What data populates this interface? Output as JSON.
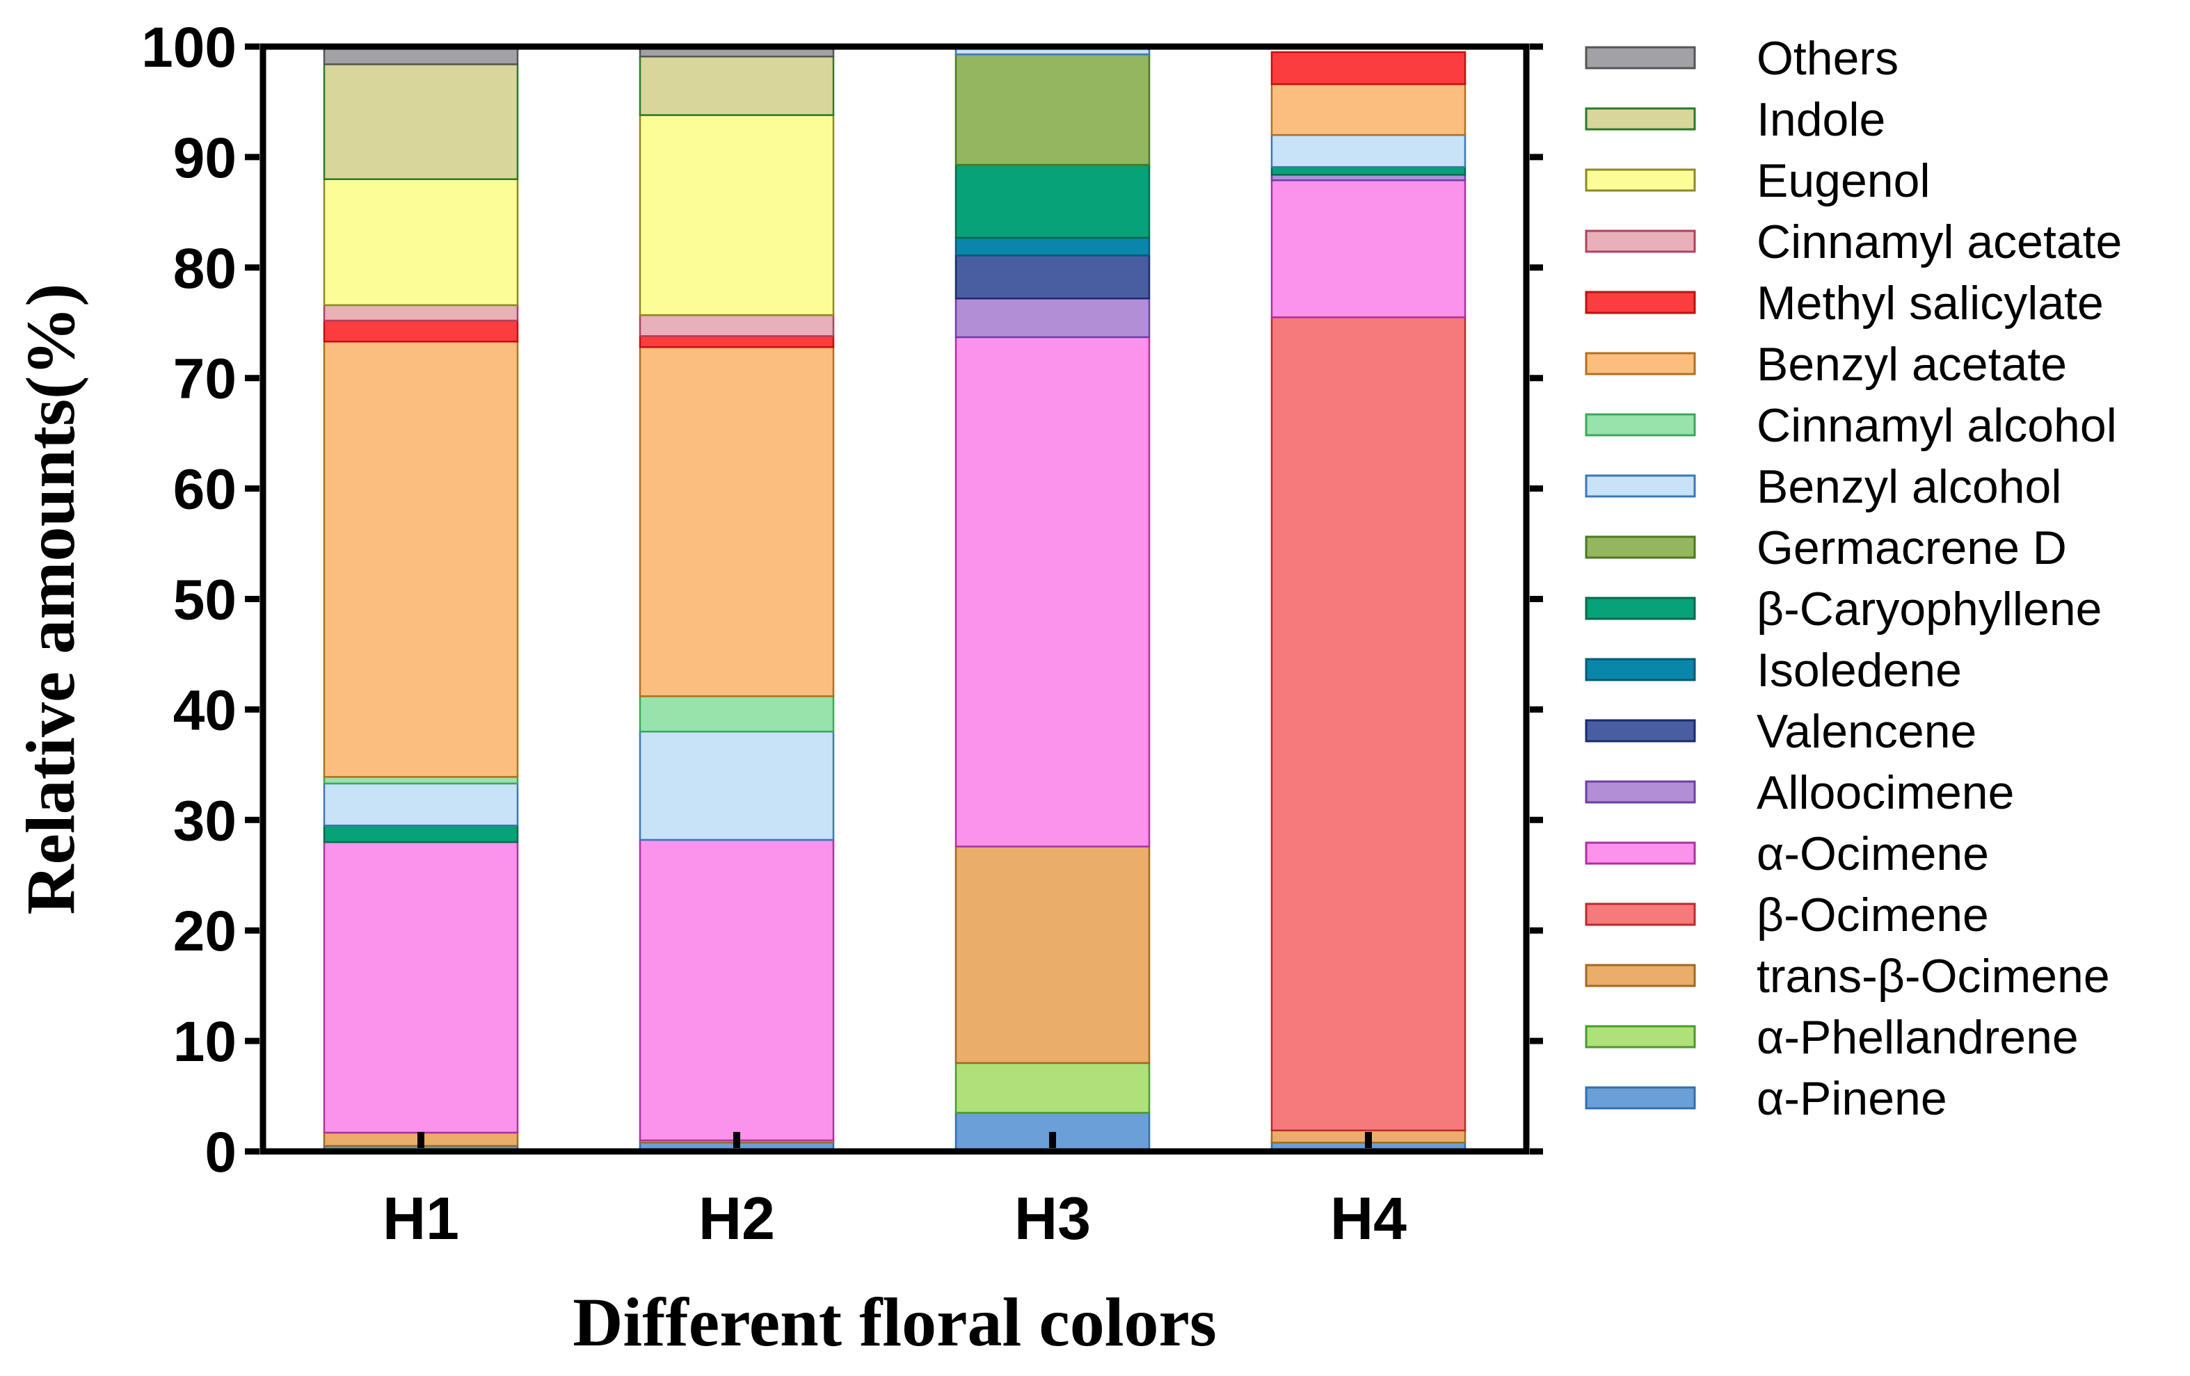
{
  "chart_data": {
    "type": "bar",
    "stacked": true,
    "title": "",
    "xlabel": "Different floral colors",
    "ylabel": "Relative  amounts(%)",
    "ylim": [
      0,
      100
    ],
    "yticks": [
      0,
      10,
      20,
      30,
      40,
      50,
      60,
      70,
      80,
      90,
      100
    ],
    "categories": [
      "H1",
      "H2",
      "H3",
      "H4"
    ],
    "legend_position": "right",
    "grid": false,
    "series": [
      {
        "name": "α-Pinene",
        "fill": "#6a9fd8",
        "stroke": "#2f6fb0",
        "values": [
          0.5,
          0.8,
          3.5,
          0.8
        ]
      },
      {
        "name": "α-Phellandrene",
        "fill": "#b0e07a",
        "stroke": "#4a9a2e",
        "values": [
          0,
          0,
          4.5,
          0
        ]
      },
      {
        "name": "trans-β-Ocimene",
        "fill": "#ebae6a",
        "stroke": "#a06a20",
        "values": [
          1.2,
          0.2,
          19.6,
          1.1
        ]
      },
      {
        "name": "β-Ocimene",
        "fill": "#f67a7c",
        "stroke": "#c0282a",
        "values": [
          0,
          0,
          0,
          73.6
        ]
      },
      {
        "name": "α-Ocimene",
        "fill": "#fb92ec",
        "stroke": "#b030a0",
        "values": [
          26.3,
          27.2,
          46.1,
          12.4
        ]
      },
      {
        "name": "Alloocimene",
        "fill": "#b28ed6",
        "stroke": "#6a40a8",
        "values": [
          0,
          0,
          3.5,
          0.5
        ]
      },
      {
        "name": "Valencene",
        "fill": "#485ea0",
        "stroke": "#1a2a70",
        "values": [
          0,
          0,
          3.9,
          0
        ]
      },
      {
        "name": "Isoledene",
        "fill": "#0a86aa",
        "stroke": "#045a78",
        "values": [
          0,
          0,
          1.6,
          0
        ]
      },
      {
        "name": "β-Caryophyllene",
        "fill": "#08a279",
        "stroke": "#046a4a",
        "values": [
          1.5,
          0,
          6.6,
          0.7
        ]
      },
      {
        "name": "Germacrene D",
        "fill": "#94b660",
        "stroke": "#4a7a20",
        "values": [
          0,
          0,
          10.0,
          0
        ]
      },
      {
        "name": "Benzyl alcohol",
        "fill": "#c8e2f8",
        "stroke": "#3a78b8",
        "values": [
          3.8,
          9.8,
          0.8,
          2.9
        ]
      },
      {
        "name": "Cinnamyl alcohol",
        "fill": "#98e2ac",
        "stroke": "#3aa85a",
        "values": [
          0.6,
          3.2,
          0,
          0
        ]
      },
      {
        "name": "Benzyl acetate",
        "fill": "#fbbe7e",
        "stroke": "#b07020",
        "values": [
          39.4,
          31.6,
          0,
          4.6
        ]
      },
      {
        "name": "Methyl salicylate",
        "fill": "#fc3d3d",
        "stroke": "#c01010",
        "values": [
          1.9,
          1.0,
          0,
          2.9
        ]
      },
      {
        "name": "Cinnamyl acetate",
        "fill": "#e8b0b8",
        "stroke": "#b04060",
        "values": [
          1.4,
          1.9,
          0,
          0
        ]
      },
      {
        "name": "Eugenol",
        "fill": "#fdfd98",
        "stroke": "#8a8a20",
        "values": [
          11.4,
          18.1,
          0,
          0
        ]
      },
      {
        "name": "Indole",
        "fill": "#d8d69a",
        "stroke": "#2a7a2a",
        "values": [
          10.4,
          5.3,
          0,
          0
        ]
      },
      {
        "name": "Others",
        "fill": "#a2a2a6",
        "stroke": "#555555",
        "values": [
          1.6,
          0.9,
          0,
          0
        ]
      }
    ]
  }
}
